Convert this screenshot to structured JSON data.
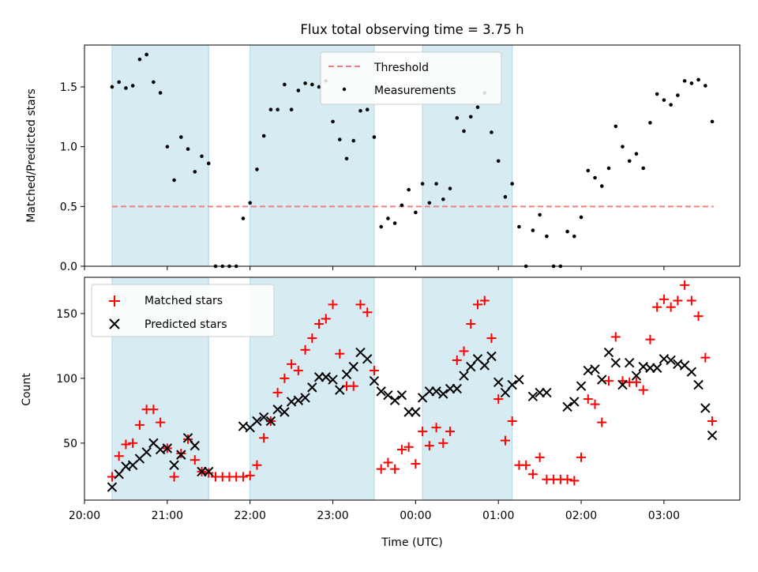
{
  "chart_data": [
    {
      "type": "scatter",
      "title": "Flux total observing time = 3.75 h",
      "ylabel": "Matched/Predicted stars",
      "xlabel": "",
      "ylim": [
        0,
        1.85
      ],
      "yticks": [
        "0.0",
        "0.5",
        "1.0",
        "1.5"
      ],
      "x_tick_times": [
        "20:00",
        "21:00",
        "22:00",
        "23:00",
        "00:00",
        "01:00",
        "02:00",
        "03:00"
      ],
      "legend_position": "top-center",
      "threshold": {
        "name": "Threshold",
        "value": 0.5,
        "x_start": "20:20",
        "x_end": "03:36",
        "color": "#f08080"
      },
      "shaded_intervals": [
        [
          "20:20",
          "21:30"
        ],
        [
          "22:00",
          "23:30"
        ],
        [
          "00:05",
          "01:10"
        ]
      ],
      "series": [
        {
          "name": "Measurements",
          "color": "#000000",
          "x": [
            "20:20",
            "20:25",
            "20:30",
            "20:35",
            "20:40",
            "20:45",
            "20:50",
            "20:55",
            "21:00",
            "21:05",
            "21:10",
            "21:15",
            "21:20",
            "21:25",
            "21:30",
            "21:35",
            "21:40",
            "21:45",
            "21:50",
            "21:55",
            "22:00",
            "22:05",
            "22:10",
            "22:15",
            "22:20",
            "22:25",
            "22:30",
            "22:35",
            "22:40",
            "22:45",
            "22:50",
            "22:55",
            "23:00",
            "23:05",
            "23:10",
            "23:15",
            "23:20",
            "23:25",
            "23:30",
            "23:35",
            "23:40",
            "23:45",
            "23:50",
            "23:55",
            "00:00",
            "00:05",
            "00:10",
            "00:15",
            "00:20",
            "00:25",
            "00:30",
            "00:35",
            "00:40",
            "00:45",
            "00:50",
            "00:55",
            "01:00",
            "01:05",
            "01:10",
            "01:15",
            "01:20",
            "01:25",
            "01:30",
            "01:35",
            "01:40",
            "01:45",
            "01:50",
            "01:55",
            "02:00",
            "02:05",
            "02:10",
            "02:15",
            "02:20",
            "02:25",
            "02:30",
            "02:35",
            "02:40",
            "02:45",
            "02:50",
            "02:55",
            "03:00",
            "03:05",
            "03:10",
            "03:15",
            "03:20",
            "03:25",
            "03:30",
            "03:35"
          ],
          "y": [
            1.5,
            1.54,
            1.49,
            1.51,
            1.73,
            1.77,
            1.54,
            1.45,
            1.0,
            0.72,
            1.08,
            0.98,
            0.79,
            0.92,
            0.86,
            0.0,
            0.0,
            0.0,
            0.0,
            0.4,
            0.53,
            0.81,
            1.09,
            1.31,
            1.31,
            1.52,
            1.31,
            1.47,
            1.53,
            1.52,
            1.5,
            1.55,
            1.21,
            1.06,
            0.9,
            1.05,
            1.3,
            1.31,
            1.08,
            0.33,
            0.4,
            0.36,
            0.51,
            0.64,
            0.45,
            0.69,
            0.53,
            0.69,
            0.56,
            0.65,
            1.24,
            1.13,
            1.25,
            1.33,
            1.45,
            1.12,
            0.88,
            0.58,
            0.69,
            0.33,
            0.0,
            0.3,
            0.43,
            0.25,
            0.0,
            0.0,
            0.29,
            0.25,
            0.41,
            0.8,
            0.74,
            0.67,
            0.82,
            1.17,
            1.0,
            0.88,
            0.94,
            0.82,
            1.2,
            1.44,
            1.39,
            1.35,
            1.43,
            1.55,
            1.53,
            1.56,
            1.51,
            1.21
          ]
        }
      ]
    },
    {
      "type": "scatter",
      "title": "",
      "xlabel": "Time (UTC)",
      "ylabel": "Count",
      "ylim": [
        6,
        178
      ],
      "yticks": [
        "50",
        "100",
        "150"
      ],
      "x_tick_labels": [
        "20:00",
        "21:00",
        "22:00",
        "23:00",
        "00:00",
        "01:00",
        "02:00",
        "03:00"
      ],
      "legend_position": "top-left",
      "shaded_intervals": [
        [
          "20:20",
          "21:30"
        ],
        [
          "22:00",
          "23:30"
        ],
        [
          "00:05",
          "01:10"
        ]
      ],
      "series": [
        {
          "name": "Matched stars",
          "marker": "+",
          "color": "#ff0000",
          "x": [
            "20:20",
            "20:25",
            "20:30",
            "20:35",
            "20:40",
            "20:45",
            "20:50",
            "20:55",
            "21:00",
            "21:05",
            "21:10",
            "21:15",
            "21:20",
            "21:25",
            "21:30",
            "21:35",
            "21:40",
            "21:45",
            "21:50",
            "21:55",
            "22:00",
            "22:05",
            "22:10",
            "22:15",
            "22:20",
            "22:25",
            "22:30",
            "22:35",
            "22:40",
            "22:45",
            "22:50",
            "22:55",
            "23:00",
            "23:05",
            "23:10",
            "23:15",
            "23:20",
            "23:25",
            "23:30",
            "23:35",
            "23:40",
            "23:45",
            "23:50",
            "23:55",
            "00:00",
            "00:05",
            "00:10",
            "00:15",
            "00:20",
            "00:25",
            "00:30",
            "00:35",
            "00:40",
            "00:45",
            "00:50",
            "00:55",
            "01:00",
            "01:05",
            "01:10",
            "01:15",
            "01:20",
            "01:25",
            "01:30",
            "01:35",
            "01:40",
            "01:45",
            "01:50",
            "01:55",
            "02:00",
            "02:05",
            "02:10",
            "02:15",
            "02:20",
            "02:25",
            "02:30",
            "02:35",
            "02:40",
            "02:45",
            "02:50",
            "02:55",
            "03:00",
            "03:05",
            "03:10",
            "03:15",
            "03:20",
            "03:25",
            "03:30",
            "03:35"
          ],
          "y": [
            24,
            40,
            49,
            50,
            64,
            76,
            76,
            66,
            46,
            24,
            42,
            53,
            37,
            28,
            27,
            24,
            24,
            24,
            24,
            24,
            25,
            33,
            54,
            67,
            89,
            100,
            111,
            106,
            122,
            131,
            142,
            146,
            157,
            119,
            94,
            94,
            157,
            151,
            106,
            30,
            35,
            30,
            45,
            47,
            34,
            59,
            48,
            62,
            50,
            59,
            114,
            121,
            142,
            157,
            160,
            131,
            84,
            52,
            67,
            33,
            33,
            26,
            39,
            22,
            22,
            22,
            22,
            21,
            39,
            84,
            80,
            66,
            98,
            132,
            98,
            97,
            97,
            91,
            130,
            155,
            161,
            155,
            160,
            172,
            160,
            148,
            116,
            67
          ]
        },
        {
          "name": "Predicted stars",
          "marker": "x",
          "color": "#000000",
          "x": [
            "20:20",
            "20:25",
            "20:30",
            "20:35",
            "20:40",
            "20:45",
            "20:50",
            "20:55",
            "21:00",
            "21:05",
            "21:10",
            "21:15",
            "21:20",
            "21:25",
            "21:30",
            "21:35",
            "21:40",
            "21:45",
            "21:50",
            "21:55",
            "22:00",
            "22:05",
            "22:10",
            "22:15",
            "22:20",
            "22:25",
            "22:30",
            "22:35",
            "22:40",
            "22:45",
            "22:50",
            "22:55",
            "23:00",
            "23:05",
            "23:10",
            "23:15",
            "23:20",
            "23:25",
            "23:30",
            "23:35",
            "23:40",
            "23:45",
            "23:50",
            "23:55",
            "00:00",
            "00:05",
            "00:10",
            "00:15",
            "00:20",
            "00:25",
            "00:30",
            "00:35",
            "00:40",
            "00:45",
            "00:50",
            "00:55",
            "01:00",
            "01:05",
            "01:10",
            "01:15",
            "01:20",
            "01:25",
            "01:30",
            "01:35",
            "01:40",
            "01:45",
            "01:50",
            "01:55",
            "02:00",
            "02:05",
            "02:10",
            "02:15",
            "02:20",
            "02:25",
            "02:30",
            "02:35",
            "02:40",
            "02:45",
            "02:50",
            "02:55",
            "03:00",
            "03:05",
            "03:10",
            "03:15",
            "03:20",
            "03:25",
            "03:30",
            "03:35"
          ],
          "y": [
            16,
            26,
            32,
            33,
            38,
            43,
            50,
            45,
            46,
            33,
            41,
            54,
            48,
            28,
            28,
            null,
            null,
            null,
            null,
            63,
            62,
            67,
            70,
            67,
            76,
            74,
            82,
            83,
            85,
            93,
            101,
            101,
            99,
            91,
            103,
            109,
            120,
            115,
            98,
            90,
            87,
            83,
            87,
            74,
            74,
            85,
            90,
            90,
            88,
            92,
            92,
            102,
            109,
            115,
            110,
            117,
            97,
            89,
            95,
            99,
            null,
            86,
            89,
            89,
            null,
            null,
            78,
            82,
            94,
            106,
            107,
            99,
            120,
            112,
            95,
            112,
            102,
            109,
            108,
            108,
            115,
            114,
            111,
            110,
            105,
            95,
            77,
            56
          ]
        }
      ]
    }
  ]
}
